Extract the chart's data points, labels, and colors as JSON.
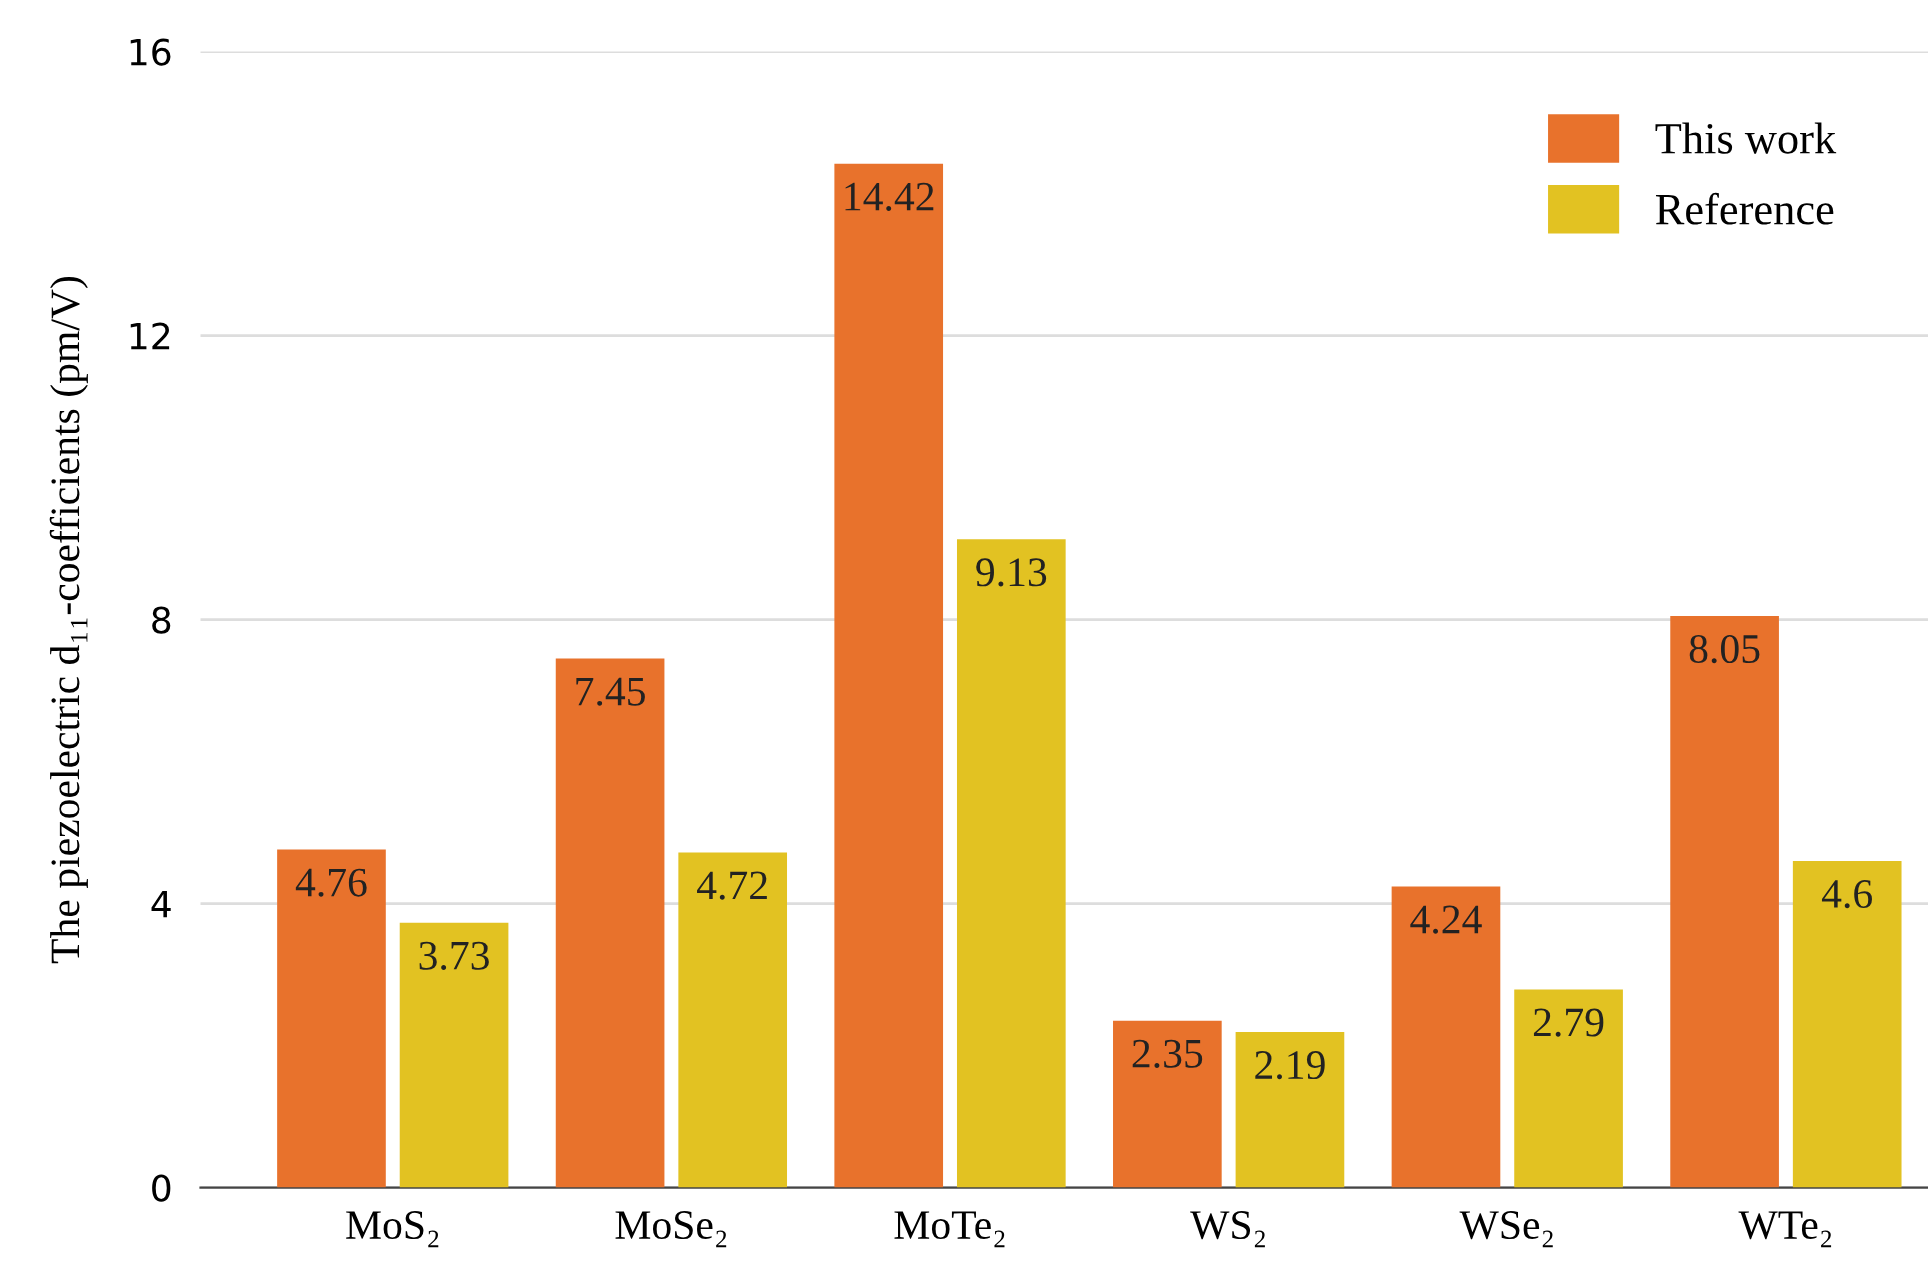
{
  "chart_data": {
    "type": "bar",
    "ylabel": "The piezoelectric d₁₁-coefficients (pm/V)",
    "categories": [
      "MoS₂",
      "MoSe₂",
      "MoTe₂",
      "WS₂",
      "WSe₂",
      "WTe₂"
    ],
    "series": [
      {
        "name": "This work",
        "color": "#e8722c",
        "values": [
          4.76,
          7.45,
          14.42,
          2.35,
          4.24,
          8.05
        ]
      },
      {
        "name": "Reference",
        "color": "#e2c222",
        "values": [
          3.73,
          4.72,
          9.13,
          2.19,
          2.79,
          4.6
        ]
      }
    ],
    "ylim": [
      0,
      16
    ],
    "yticks": [
      0,
      4,
      8,
      12,
      16
    ],
    "grid": "y",
    "legend": "top right",
    "data_labels": true
  }
}
